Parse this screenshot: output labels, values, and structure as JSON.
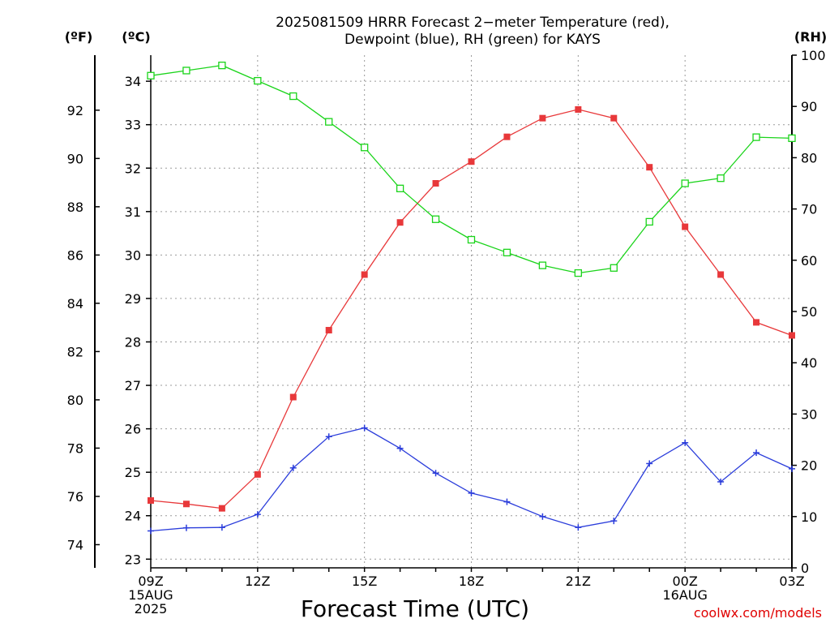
{
  "chart_data": {
    "type": "line",
    "title_line1": "2025081509 HRRR Forecast 2−meter Temperature (red),",
    "title_line2": "Dewpoint (blue), RH (green) for KAYS",
    "xlabel": "Forecast Time (UTC)",
    "units": {
      "fahrenheit": "(ºF)",
      "celsius": "(ºC)",
      "rh": "(RH)"
    },
    "credit": "coolwx.com/models",
    "x_ticks": [
      {
        "x": 0,
        "lines": [
          "09Z",
          "15AUG",
          "2025"
        ]
      },
      {
        "x": 3,
        "lines": [
          "12Z"
        ]
      },
      {
        "x": 6,
        "lines": [
          "15Z"
        ]
      },
      {
        "x": 9,
        "lines": [
          "18Z"
        ]
      },
      {
        "x": 12,
        "lines": [
          "21Z"
        ]
      },
      {
        "x": 15,
        "lines": [
          "00Z",
          "16AUG"
        ]
      },
      {
        "x": 18,
        "lines": [
          "03Z"
        ]
      }
    ],
    "x": [
      0,
      1,
      2,
      3,
      4,
      5,
      6,
      7,
      8,
      9,
      10,
      11,
      12,
      13,
      14,
      15,
      16,
      17,
      18
    ],
    "xlim": [
      0,
      18
    ],
    "ylim_c": [
      22.8,
      34.6
    ],
    "y_ticks_c": [
      23,
      24,
      25,
      26,
      27,
      28,
      29,
      30,
      31,
      32,
      33,
      34
    ],
    "y_ticks_f": [
      74,
      76,
      78,
      80,
      82,
      84,
      86,
      88,
      90,
      92
    ],
    "ylim_rh": [
      0,
      100
    ],
    "y_ticks_rh": [
      0,
      10,
      20,
      30,
      40,
      50,
      60,
      70,
      80,
      90,
      100
    ],
    "grid": true,
    "series": [
      {
        "name": "Temperature",
        "axis": "celsius",
        "color": "#e8383a",
        "marker": "filled-square",
        "values": [
          24.35,
          24.27,
          24.17,
          24.95,
          26.73,
          28.27,
          29.55,
          30.75,
          31.65,
          32.15,
          32.72,
          33.15,
          33.35,
          33.15,
          32.02,
          30.65,
          29.55,
          28.45,
          28.15
        ]
      },
      {
        "name": "Dewpoint",
        "axis": "celsius",
        "color": "#2b3ddb",
        "marker": "plus",
        "values": [
          23.65,
          23.72,
          23.73,
          24.03,
          25.1,
          25.82,
          26.02,
          25.55,
          24.98,
          24.52,
          24.32,
          23.98,
          23.73,
          23.88,
          25.2,
          25.68,
          24.78,
          25.45,
          25.08
        ]
      },
      {
        "name": "RH",
        "axis": "rh",
        "color": "#1ad41a",
        "marker": "open-square",
        "values": [
          96,
          97,
          98,
          95,
          92,
          87,
          82,
          74,
          68,
          64,
          61.5,
          59,
          57.5,
          58.5,
          67.5,
          75,
          76,
          84,
          83.8
        ]
      }
    ]
  }
}
